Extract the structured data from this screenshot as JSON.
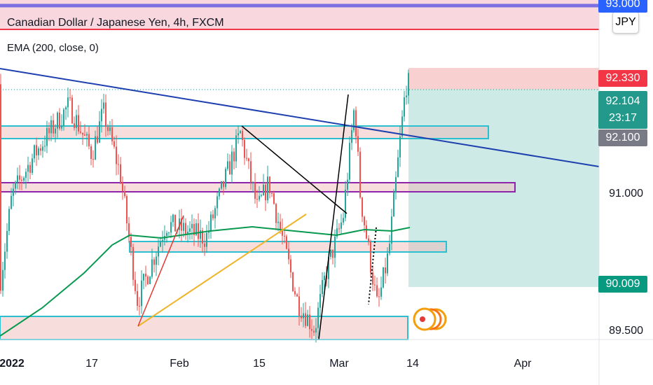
{
  "legend": {
    "title": "Canadian Dollar / Japanese Yen, 4h, FXCM",
    "indicator": "EMA (200, close, 0)"
  },
  "currency_button": "JPY",
  "price_axis": {
    "labels": [
      {
        "text": "93.000",
        "color": "#2962ff"
      },
      {
        "text": "92.330",
        "color": "#f23645"
      },
      {
        "text": "92.104",
        "color": "#22998b"
      },
      {
        "text": "23:17",
        "color": "#22998b"
      },
      {
        "text": "92.100",
        "color": "#787b86"
      },
      {
        "text": "91.000"
      },
      {
        "text": "90.009",
        "color": "#089981"
      },
      {
        "text": "89.500"
      }
    ]
  },
  "time_axis": [
    "2022",
    "17",
    "Feb",
    "15",
    "Mar",
    "14",
    "Apr"
  ],
  "chart_data": {
    "type": "candlestick",
    "symbol": "CADJPY",
    "interval": "4h",
    "up_color": "#26a69a",
    "down_color": "#ef5350",
    "ema_color": "#089950",
    "current_price": 92.104,
    "position": {
      "entry": 92.104,
      "target": 90.009,
      "stop": 92.33
    },
    "close_anchors": [
      [
        "2022-01-01",
        90.09
      ],
      [
        "2022-01-03",
        90.99
      ],
      [
        "2022-01-07",
        91.43
      ],
      [
        "2022-01-13",
        91.95
      ],
      [
        "2022-01-17",
        91.43
      ],
      [
        "2022-01-19",
        91.88
      ],
      [
        "2022-01-22",
        91.21
      ],
      [
        "2022-01-25",
        89.87
      ],
      [
        "2022-01-30",
        90.69
      ],
      [
        "2022-02-06",
        90.54
      ],
      [
        "2022-02-12",
        91.65
      ],
      [
        "2022-02-15",
        90.84
      ],
      [
        "2022-02-17",
        91.13
      ],
      [
        "2022-02-22",
        89.87
      ],
      [
        "2022-02-25",
        89.57
      ],
      [
        "2022-02-27",
        90.17
      ],
      [
        "2022-03-02",
        90.76
      ],
      [
        "2022-03-04",
        91.95
      ],
      [
        "2022-03-05",
        90.99
      ],
      [
        "2022-03-08",
        89.8
      ],
      [
        "2022-03-10",
        90.39
      ],
      [
        "2022-03-12",
        91.58
      ],
      [
        "2022-03-13",
        92.17
      ]
    ]
  }
}
